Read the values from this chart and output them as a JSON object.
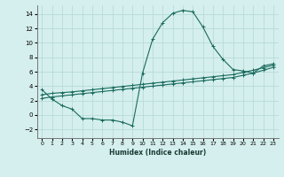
{
  "xlabel": "Humidex (Indice chaleur)",
  "bg_color": "#d4efed",
  "grid_color": "#b8dbd8",
  "line_color": "#1a6b5e",
  "xlim": [
    -0.5,
    23.5
  ],
  "ylim": [
    -3.2,
    15.2
  ],
  "xticks": [
    0,
    1,
    2,
    3,
    4,
    5,
    6,
    7,
    8,
    9,
    10,
    11,
    12,
    13,
    14,
    15,
    16,
    17,
    18,
    19,
    20,
    21,
    22,
    23
  ],
  "yticks": [
    -2,
    0,
    2,
    4,
    6,
    8,
    10,
    12,
    14
  ],
  "line1_x": [
    0,
    1,
    2,
    3,
    4,
    5,
    6,
    7,
    8,
    9,
    10,
    11,
    12,
    13,
    14,
    15,
    16,
    17,
    18,
    19,
    20,
    21,
    22,
    23
  ],
  "line1_y": [
    3.5,
    2.2,
    1.3,
    0.8,
    -0.5,
    -0.5,
    -0.7,
    -0.7,
    -1.0,
    -1.5,
    5.8,
    10.5,
    12.8,
    14.1,
    14.5,
    14.3,
    12.2,
    9.5,
    7.7,
    6.3,
    6.1,
    5.8,
    6.8,
    7.1
  ],
  "line2_x": [
    0,
    1,
    2,
    3,
    4,
    5,
    6,
    7,
    8,
    9,
    10,
    11,
    12,
    13,
    14,
    15,
    16,
    17,
    18,
    19,
    20,
    21,
    22,
    23
  ],
  "line2_y": [
    2.8,
    3.0,
    3.1,
    3.2,
    3.35,
    3.5,
    3.65,
    3.8,
    3.95,
    4.1,
    4.25,
    4.4,
    4.55,
    4.7,
    4.85,
    5.0,
    5.15,
    5.3,
    5.45,
    5.6,
    5.9,
    6.2,
    6.55,
    6.9
  ],
  "line3_x": [
    0,
    1,
    2,
    3,
    4,
    5,
    6,
    7,
    8,
    9,
    10,
    11,
    12,
    13,
    14,
    15,
    16,
    17,
    18,
    19,
    20,
    21,
    22,
    23
  ],
  "line3_y": [
    2.3,
    2.5,
    2.65,
    2.8,
    2.95,
    3.1,
    3.25,
    3.4,
    3.55,
    3.7,
    3.85,
    4.0,
    4.15,
    4.3,
    4.45,
    4.6,
    4.75,
    4.9,
    5.05,
    5.2,
    5.5,
    5.8,
    6.2,
    6.6
  ]
}
